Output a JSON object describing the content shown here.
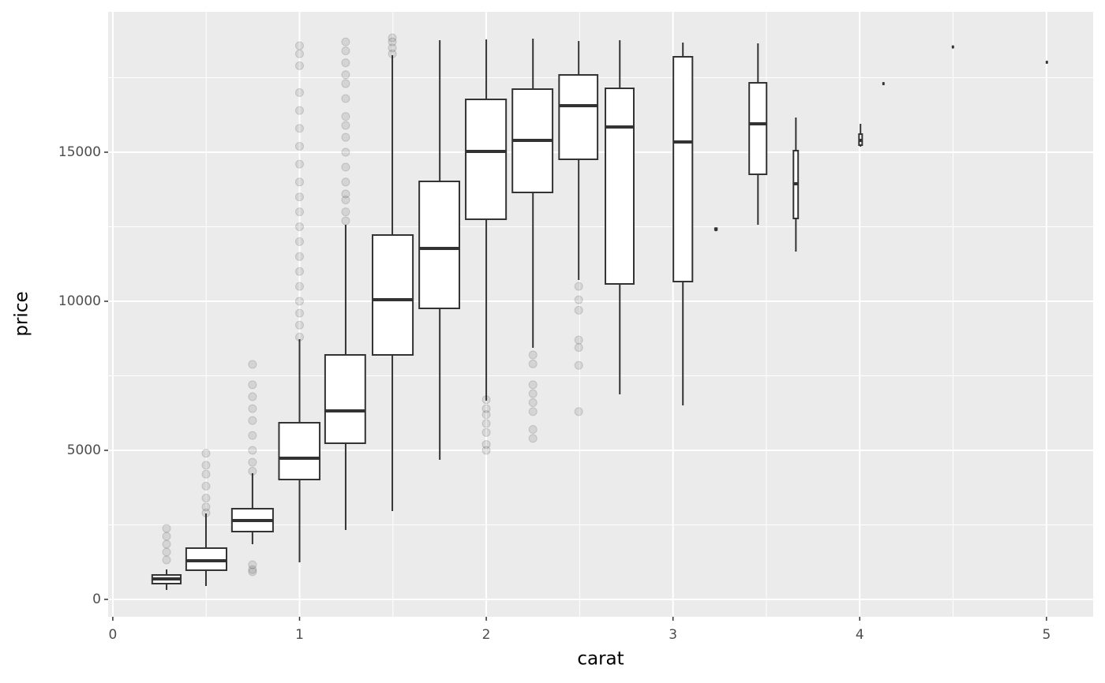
{
  "chart_data": {
    "type": "box",
    "x_label": "carat",
    "y_label": "price",
    "xlim": [
      -0.025,
      5.25
    ],
    "ylim": [
      -582,
      19709
    ],
    "xticks": [
      0,
      1,
      2,
      3,
      4,
      5
    ],
    "yticks": [
      0,
      5000,
      10000,
      15000
    ],
    "grid": true,
    "color": "#333333",
    "boxes": [
      {
        "x": 0.288,
        "xmin": 0.211,
        "xmax": 0.364,
        "whislo": 317,
        "q1": 529,
        "med": 688,
        "q3": 820,
        "whishi": 1005,
        "outliers": [
          1323,
          1587,
          1852,
          2116,
          2380
        ]
      },
      {
        "x": 0.499,
        "xmin": 0.393,
        "xmax": 0.609,
        "whislo": 450,
        "q1": 979,
        "med": 1296,
        "q3": 1720,
        "whishi": 2884,
        "outliers": [
          2900,
          3100,
          3400,
          3800,
          4200,
          4500,
          4900
        ]
      },
      {
        "x": 0.748,
        "xmin": 0.638,
        "xmax": 0.858,
        "whislo": 1852,
        "q1": 2275,
        "med": 2646,
        "q3": 3042,
        "whishi": 4233,
        "outliers": [
          926,
          1000,
          1164,
          4300,
          4600,
          5000,
          5500,
          6000,
          6400,
          6800,
          7200,
          7884
        ]
      },
      {
        "x": 1.0,
        "xmin": 0.89,
        "xmax": 1.108,
        "whislo": 1243,
        "q1": 4021,
        "med": 4735,
        "q3": 5926,
        "whishi": 8730,
        "outliers": [
          8800,
          9200,
          9600,
          10000,
          10500,
          11000,
          11500,
          12000,
          12500,
          13000,
          13500,
          14000,
          14600,
          15200,
          15800,
          16400,
          17000,
          17900,
          18300,
          18571
        ]
      },
      {
        "x": 1.247,
        "xmin": 1.137,
        "xmax": 1.352,
        "whislo": 2328,
        "q1": 5238,
        "med": 6323,
        "q3": 8201,
        "whishi": 12566,
        "outliers": [
          12700,
          13000,
          13400,
          13600,
          14000,
          14500,
          15000,
          15500,
          15900,
          16200,
          16800,
          17300,
          17600,
          18000,
          18400,
          18700
        ]
      },
      {
        "x": 1.497,
        "xmin": 1.391,
        "xmax": 1.607,
        "whislo": 2963,
        "q1": 8201,
        "med": 10053,
        "q3": 12222,
        "whishi": 18254,
        "outliers": [
          18300,
          18500,
          18700,
          18836
        ]
      },
      {
        "x": 1.751,
        "xmin": 1.641,
        "xmax": 1.856,
        "whislo": 4683,
        "q1": 9762,
        "med": 11772,
        "q3": 14021,
        "whishi": 18757,
        "outliers": []
      },
      {
        "x": 2.0,
        "xmin": 1.89,
        "xmax": 2.106,
        "whislo": 6667,
        "q1": 12751,
        "med": 15026,
        "q3": 16772,
        "whishi": 18783,
        "outliers": [
          5000,
          5200,
          5600,
          5900,
          6200,
          6400,
          6700
        ]
      },
      {
        "x": 2.25,
        "xmin": 2.14,
        "xmax": 2.355,
        "whislo": 8439,
        "q1": 13651,
        "med": 15397,
        "q3": 17116,
        "whishi": 18810,
        "outliers": [
          5400,
          5700,
          6300,
          6600,
          6900,
          7200,
          7900,
          8200
        ]
      },
      {
        "x": 2.495,
        "xmin": 2.39,
        "xmax": 2.596,
        "whislo": 10714,
        "q1": 14762,
        "med": 16561,
        "q3": 17593,
        "whishi": 18730,
        "outliers": [
          6300,
          7850,
          8450,
          8700,
          9700,
          10050,
          10500
        ]
      },
      {
        "x": 2.715,
        "xmin": 2.638,
        "xmax": 2.79,
        "whislo": 6878,
        "q1": 10582,
        "med": 15847,
        "q3": 17143,
        "whishi": 18757,
        "outliers": []
      },
      {
        "x": 3.053,
        "xmin": 3.002,
        "xmax": 3.104,
        "whislo": 6508,
        "q1": 10661,
        "med": 15344,
        "q3": 18201,
        "whishi": 18677,
        "outliers": []
      },
      {
        "x": 3.23,
        "xmin": 3.225,
        "xmax": 3.235,
        "whislo": 12350,
        "q1": 12390,
        "med": 12420,
        "q3": 12450,
        "whishi": 12480,
        "outliers": []
      },
      {
        "x": 3.455,
        "xmin": 3.408,
        "xmax": 3.501,
        "whislo": 12566,
        "q1": 14259,
        "med": 15952,
        "q3": 17328,
        "whishi": 18651,
        "outliers": []
      },
      {
        "x": 3.658,
        "xmin": 3.645,
        "xmax": 3.67,
        "whislo": 11667,
        "q1": 12778,
        "med": 13942,
        "q3": 15053,
        "whishi": 16164,
        "outliers": []
      },
      {
        "x": 4.004,
        "xmin": 3.996,
        "xmax": 4.013,
        "whislo": 15185,
        "q1": 15238,
        "med": 15397,
        "q3": 15608,
        "whishi": 15952,
        "outliers": []
      },
      {
        "x": 4.127,
        "xmin": 4.125,
        "xmax": 4.129,
        "whislo": 17250,
        "q1": 17280,
        "med": 17300,
        "q3": 17320,
        "whishi": 17350,
        "outliers": []
      },
      {
        "x": 4.499,
        "xmin": 4.497,
        "xmax": 4.501,
        "whislo": 18480,
        "q1": 18510,
        "med": 18531,
        "q3": 18550,
        "whishi": 18580,
        "outliers": []
      },
      {
        "x": 5.002,
        "xmin": 5.0,
        "xmax": 5.004,
        "whislo": 17970,
        "q1": 18000,
        "med": 18018,
        "q3": 18035,
        "whishi": 18065,
        "outliers": []
      }
    ]
  }
}
